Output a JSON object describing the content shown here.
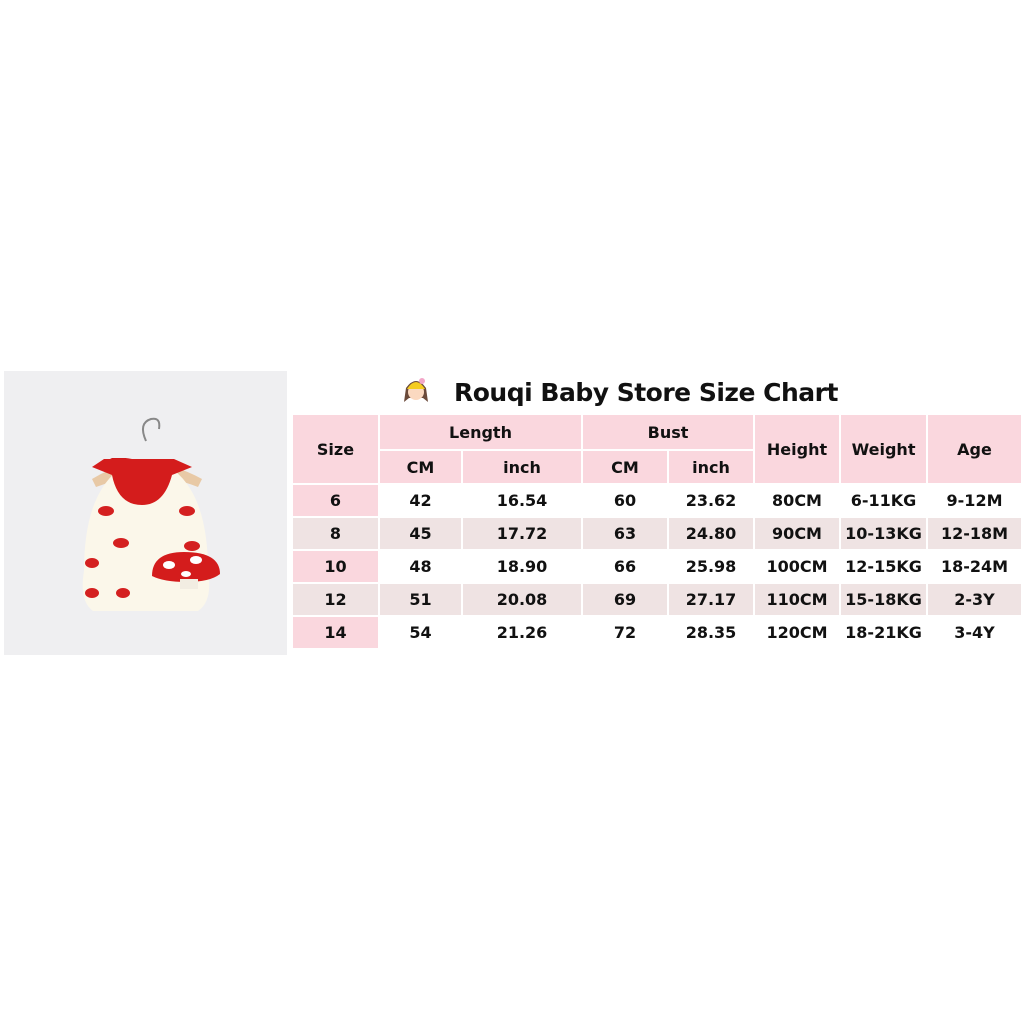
{
  "title": "Rouqi Baby Store Size Chart",
  "icons": {
    "title": "girl-emoji-icon",
    "photo": "product-photo-mushroom-dress"
  },
  "colors": {
    "header": "#fad7de",
    "alt_row": "#efe3e3"
  },
  "table": {
    "headers": {
      "size": "Size",
      "length": "Length",
      "bust": "Bust",
      "height": "Height",
      "weight": "Weight",
      "age": "Age",
      "cm": "CM",
      "inch": "inch"
    },
    "rows": [
      [
        "6",
        "42",
        "16.54",
        "60",
        "23.62",
        "80CM",
        "6-11KG",
        "9-12M"
      ],
      [
        "8",
        "45",
        "17.72",
        "63",
        "24.80",
        "90CM",
        "10-13KG",
        "12-18M"
      ],
      [
        "10",
        "48",
        "18.90",
        "66",
        "25.98",
        "100CM",
        "12-15KG",
        "18-24M"
      ],
      [
        "12",
        "51",
        "20.08",
        "69",
        "27.17",
        "110CM",
        "15-18KG",
        "2-3Y"
      ],
      [
        "14",
        "54",
        "21.26",
        "72",
        "28.35",
        "120CM",
        "18-21KG",
        "3-4Y"
      ]
    ]
  }
}
